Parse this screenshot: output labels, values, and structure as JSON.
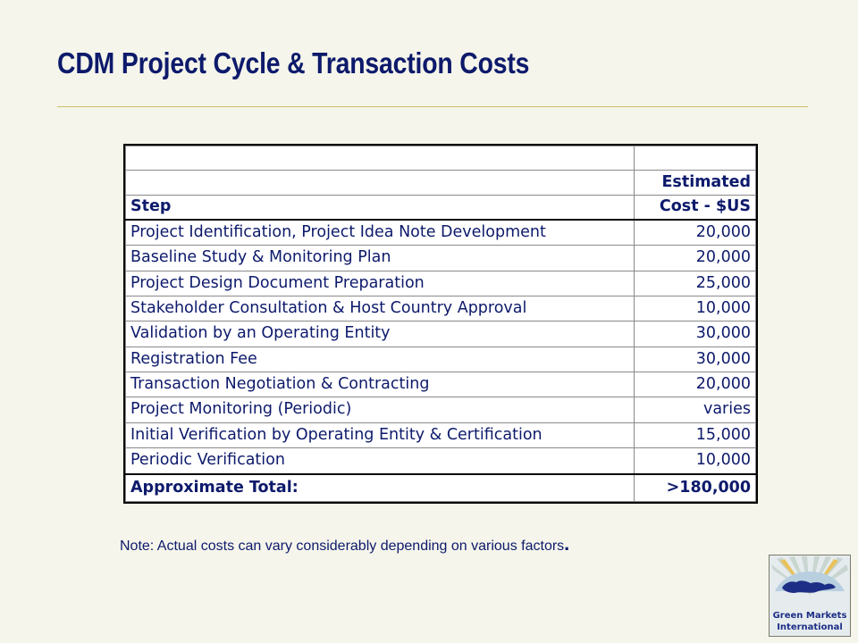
{
  "slide": {
    "title": "CDM Project Cycle & Transaction Costs",
    "note": "Note: Actual costs can vary considerably depending on various factors",
    "note_end": "."
  },
  "table": {
    "header": {
      "col1": "Step",
      "col2_line1": "Estimated",
      "col2_line2": "Cost - $US"
    },
    "rows": [
      {
        "step": "Project Identification, Project Idea Note Development",
        "cost": "20,000"
      },
      {
        "step": "Baseline Study & Monitoring Plan",
        "cost": "20,000"
      },
      {
        "step": "Project Design Document Preparation",
        "cost": "25,000"
      },
      {
        "step": "Stakeholder Consultation & Host Country Approval",
        "cost": "10,000"
      },
      {
        "step": "Validation by an Operating Entity",
        "cost": "30,000"
      },
      {
        "step": "Registration Fee",
        "cost": "30,000"
      },
      {
        "step": "Transaction Negotiation & Contracting",
        "cost": "20,000"
      },
      {
        "step": "Project Monitoring (Periodic)",
        "cost": "varies"
      },
      {
        "step": "Initial Verification by Operating Entity & Certification",
        "cost": "15,000"
      },
      {
        "step": "Periodic Verification",
        "cost": "10,000"
      }
    ],
    "total": {
      "label": "Approximate Total:",
      "cost": ">180,000"
    }
  },
  "logo": {
    "line1": "Green Markets",
    "line2": "International",
    "icon": "globe-sunburst-logo"
  },
  "colors": {
    "title": "#0d1a6b",
    "text": "#0d1a6b",
    "background": "#f5f5eb",
    "rule": "#c9c06a"
  }
}
